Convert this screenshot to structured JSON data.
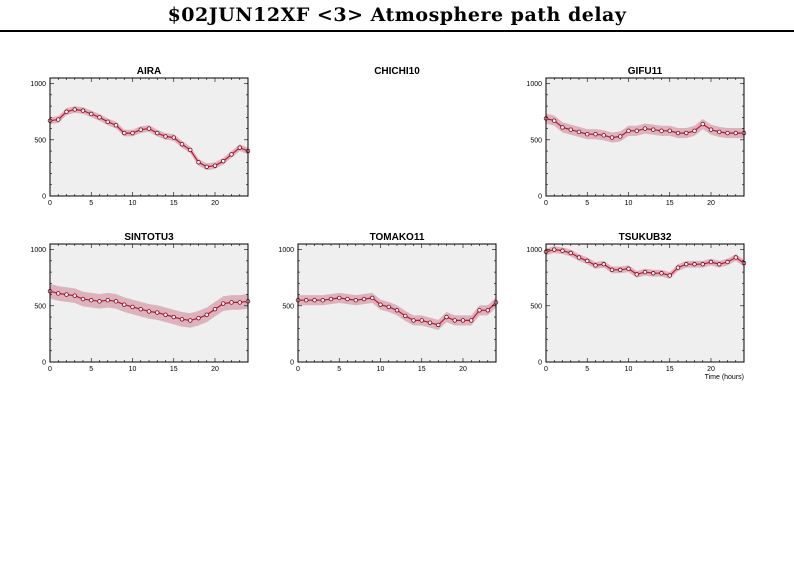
{
  "title": "$02JUN12XF <3>  Atmosphere path delay",
  "colors": {
    "panel_bg": "#efefef",
    "band": "#dcb3bd",
    "line": "#c8102e",
    "marker": "#7a0018",
    "axis": "#000000"
  },
  "chart_data": [
    {
      "type": "line",
      "title": "AIRA",
      "xlim": [
        0,
        24
      ],
      "ylim": [
        0,
        1050
      ],
      "xticks": [
        0,
        5,
        10,
        15,
        20
      ],
      "yticks": [
        0,
        500,
        1000
      ],
      "xlabel": "",
      "x": [
        0,
        1,
        2,
        3,
        4,
        5,
        6,
        7,
        8,
        9,
        10,
        11,
        12,
        13,
        14,
        15,
        16,
        17,
        18,
        19,
        20,
        21,
        22,
        23,
        24
      ],
      "y": [
        670,
        680,
        750,
        770,
        760,
        730,
        700,
        660,
        630,
        560,
        560,
        590,
        600,
        560,
        530,
        520,
        460,
        410,
        300,
        260,
        270,
        310,
        370,
        430,
        400
      ],
      "band": 30
    },
    {
      "type": "line",
      "title": "CHICHI10",
      "empty": true
    },
    {
      "type": "line",
      "title": "GIFU11",
      "xlim": [
        0,
        24
      ],
      "ylim": [
        0,
        1050
      ],
      "xticks": [
        0,
        5,
        10,
        15,
        20
      ],
      "yticks": [
        0,
        500,
        1000
      ],
      "xlabel": "",
      "x": [
        0,
        1,
        2,
        3,
        4,
        5,
        6,
        7,
        8,
        9,
        10,
        11,
        12,
        13,
        14,
        15,
        16,
        17,
        18,
        19,
        20,
        21,
        22,
        23,
        24
      ],
      "y": [
        690,
        670,
        610,
        590,
        570,
        550,
        550,
        540,
        520,
        530,
        580,
        580,
        600,
        590,
        580,
        580,
        560,
        560,
        580,
        640,
        590,
        570,
        560,
        560,
        560
      ],
      "band": 45
    },
    {
      "type": "line",
      "title": "SINTOTU3",
      "xlim": [
        0,
        24
      ],
      "ylim": [
        0,
        1050
      ],
      "xticks": [
        0,
        5,
        10,
        15,
        20
      ],
      "yticks": [
        0,
        500,
        1000
      ],
      "xlabel": "",
      "x": [
        0,
        1,
        2,
        3,
        4,
        5,
        6,
        7,
        8,
        9,
        10,
        11,
        12,
        13,
        14,
        15,
        16,
        17,
        18,
        19,
        20,
        21,
        22,
        23,
        24
      ],
      "y": [
        630,
        610,
        600,
        590,
        560,
        550,
        540,
        550,
        540,
        510,
        490,
        470,
        450,
        440,
        420,
        400,
        380,
        370,
        390,
        420,
        470,
        520,
        530,
        530,
        540
      ],
      "band": 65
    },
    {
      "type": "line",
      "title": "TOMAKO11",
      "xlim": [
        0,
        24
      ],
      "ylim": [
        0,
        1050
      ],
      "xticks": [
        0,
        5,
        10,
        15,
        20
      ],
      "yticks": [
        0,
        500,
        1000
      ],
      "xlabel": "",
      "x": [
        0,
        1,
        2,
        3,
        4,
        5,
        6,
        7,
        8,
        9,
        10,
        11,
        12,
        13,
        14,
        15,
        16,
        17,
        18,
        19,
        20,
        21,
        22,
        23,
        24
      ],
      "y": [
        550,
        550,
        550,
        550,
        560,
        570,
        560,
        550,
        560,
        570,
        510,
        490,
        460,
        410,
        370,
        370,
        350,
        330,
        400,
        370,
        370,
        370,
        460,
        460,
        530
      ],
      "band": 45
    },
    {
      "type": "line",
      "title": "TSUKUB32",
      "xlim": [
        0,
        24
      ],
      "ylim": [
        0,
        1050
      ],
      "xticks": [
        0,
        5,
        10,
        15,
        20
      ],
      "yticks": [
        0,
        500,
        1000
      ],
      "xlabel": "Time (hours)",
      "x": [
        0,
        1,
        2,
        3,
        4,
        5,
        6,
        7,
        8,
        9,
        10,
        11,
        12,
        13,
        14,
        15,
        16,
        17,
        18,
        19,
        20,
        21,
        22,
        23,
        24
      ],
      "y": [
        980,
        1000,
        990,
        970,
        930,
        900,
        860,
        870,
        820,
        820,
        830,
        780,
        800,
        790,
        790,
        770,
        840,
        870,
        870,
        870,
        890,
        870,
        890,
        930,
        880
      ],
      "band": 30
    }
  ]
}
